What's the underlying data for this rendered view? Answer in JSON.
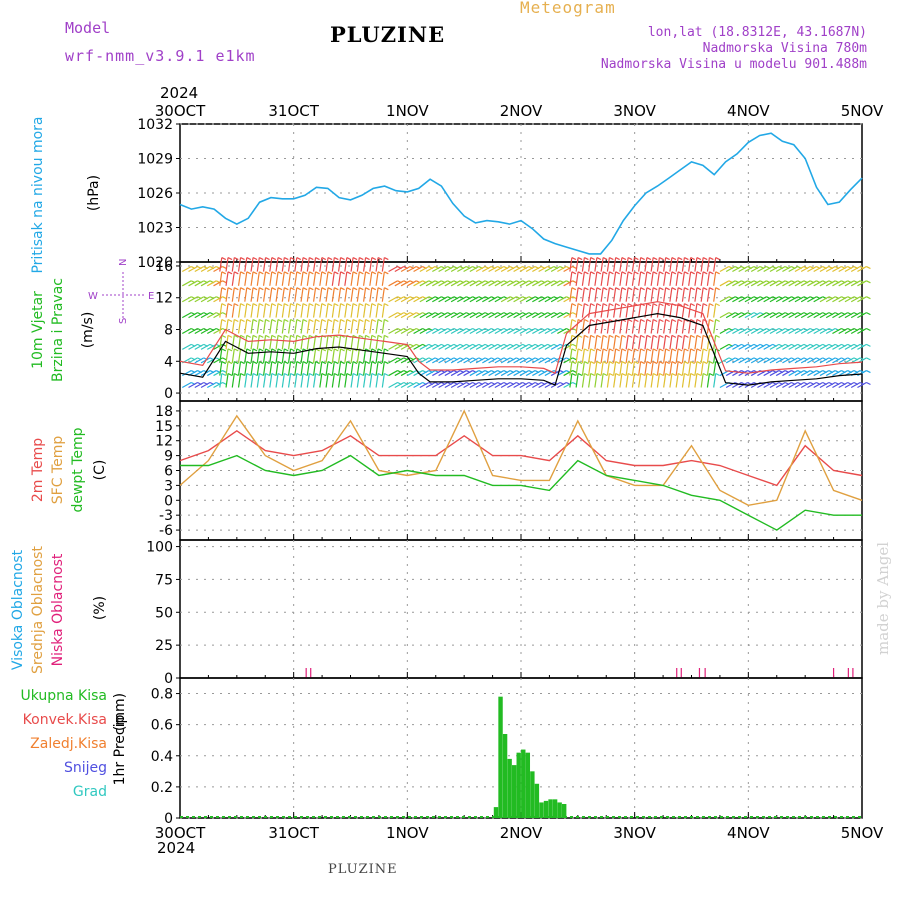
{
  "header": {
    "model_label": "Model",
    "model_name": "wrf-nmm_v3.9.1 e1km",
    "title": "PLUZINE",
    "meteogram_label": "Meteogram",
    "lonlat": "lon,lat (18.8312E, 43.1687N)",
    "altitude": "Nadmorska Visina 780m",
    "model_altitude": "Nadmorska Visina u modelu 901.488m"
  },
  "footer": {
    "station": "PLUZINE",
    "credit": "made by Angel"
  },
  "colors": {
    "pressure": "#22a8e6",
    "temp2m": "#e84b4b",
    "sfc": "#e0a040",
    "dewpt": "#22bb22",
    "precip": "#22bb22",
    "high_cloud": "#22a8e6",
    "mid_cloud": "#e0a040",
    "low_cloud": "#e0207a",
    "purple": "#a040c8",
    "convective": "#e84b4b",
    "frozen": "#f08030",
    "snow": "#5050e0",
    "grad": "#30c8c0"
  },
  "time_axis": {
    "year": "2024",
    "ticks": [
      "30OCT",
      "31OCT",
      "1NOV",
      "2NOV",
      "3NOV",
      "4NOV",
      "5NOV"
    ]
  },
  "chart_data": [
    {
      "type": "line",
      "id": "pressure",
      "ylabel_title": "Pritisak na nivou mora",
      "ylabel_unit": "(hPa)",
      "ylim": [
        1020,
        1032
      ],
      "yticks": [
        "1020",
        "1023",
        "1026",
        "1029",
        "1032"
      ],
      "x": [
        0,
        0.1,
        0.2,
        0.3,
        0.4,
        0.5,
        0.6,
        0.7,
        0.8,
        0.9,
        1.0,
        1.1,
        1.2,
        1.3,
        1.4,
        1.5,
        1.6,
        1.7,
        1.8,
        1.9,
        2.0,
        2.1,
        2.2,
        2.3,
        2.4,
        2.5,
        2.6,
        2.7,
        2.8,
        2.9,
        3.0,
        3.1,
        3.2,
        3.3,
        3.4,
        3.5,
        3.6,
        3.7,
        3.8,
        3.9,
        4.0,
        4.1,
        4.2,
        4.3,
        4.4,
        4.5,
        4.6,
        4.7,
        4.8,
        4.9,
        5.0,
        5.1,
        5.2,
        5.3,
        5.4,
        5.5,
        5.6,
        5.7,
        5.8,
        5.9,
        6.0
      ],
      "y": [
        1025.0,
        1024.6,
        1024.8,
        1024.6,
        1023.8,
        1023.3,
        1023.8,
        1025.2,
        1025.6,
        1025.5,
        1025.5,
        1025.8,
        1026.5,
        1026.4,
        1025.6,
        1025.4,
        1025.8,
        1026.4,
        1026.6,
        1026.2,
        1026.1,
        1026.4,
        1027.2,
        1026.6,
        1025.1,
        1024.0,
        1023.4,
        1023.6,
        1023.5,
        1023.3,
        1023.6,
        1022.9,
        1022.0,
        1021.6,
        1021.3,
        1021.0,
        1020.7,
        1020.7,
        1021.9,
        1023.6,
        1024.9,
        1026.0,
        1026.6,
        1027.3,
        1028.0,
        1028.7,
        1028.4,
        1027.6,
        1028.7,
        1029.4,
        1030.4,
        1031.0,
        1031.2,
        1030.5,
        1030.2,
        1029.0,
        1026.5,
        1025.0,
        1025.2,
        1026.3,
        1027.3
      ]
    },
    {
      "type": "barbs",
      "id": "wind",
      "ylabel_title_1": "10m Vjetar",
      "ylabel_title_2": "Brzina i Pravac",
      "ylabel_unit": "(m/s)",
      "ylim": [
        -1,
        16.5
      ],
      "yticks": [
        "0",
        "4",
        "8",
        "12",
        "16"
      ],
      "compass": {
        "n": "N",
        "s": "S",
        "e": "E",
        "w": "W"
      },
      "x": [
        0,
        0.2,
        0.4,
        0.6,
        0.8,
        1.0,
        1.2,
        1.4,
        1.6,
        1.8,
        2.0,
        2.1,
        2.2,
        2.4,
        2.6,
        2.8,
        3.0,
        3.2,
        3.3,
        3.4,
        3.6,
        3.8,
        4.0,
        4.2,
        4.4,
        4.6,
        4.8,
        5.0,
        5.2,
        5.4,
        5.6,
        5.8,
        6.0
      ],
      "speed": [
        2.5,
        2.0,
        6.5,
        5.0,
        5.2,
        5.0,
        5.6,
        5.8,
        5.4,
        5.0,
        4.6,
        2.5,
        1.4,
        1.4,
        1.6,
        1.8,
        1.8,
        1.6,
        1.0,
        6.0,
        8.5,
        9.0,
        9.5,
        10.0,
        9.5,
        8.5,
        1.3,
        1.0,
        1.4,
        1.6,
        1.8,
        2.2,
        2.4
      ]
    },
    {
      "type": "line",
      "id": "temperature",
      "ylabel_title_1": "2m Temp",
      "ylabel_title_2": "SFC Temp",
      "ylabel_title_3": "dewpt Temp",
      "ylabel_unit": "(C)",
      "ylim": [
        -8,
        20
      ],
      "yticks": [
        "-6",
        "-3",
        "0",
        "3",
        "6",
        "9",
        "12",
        "15",
        "18"
      ],
      "x": [
        0,
        0.25,
        0.5,
        0.75,
        1.0,
        1.25,
        1.5,
        1.75,
        2.0,
        2.25,
        2.5,
        2.75,
        3.0,
        3.25,
        3.5,
        3.75,
        4.0,
        4.25,
        4.5,
        4.75,
        5.0,
        5.25,
        5.5,
        5.75,
        6.0
      ],
      "series": [
        {
          "name": "2m Temp",
          "values": [
            8,
            10,
            14,
            10,
            9,
            10,
            13,
            9,
            9,
            9,
            13,
            9,
            9,
            8,
            13,
            8,
            7,
            7,
            8,
            7,
            5,
            3,
            11,
            6,
            5
          ]
        },
        {
          "name": "SFC Temp",
          "values": [
            3,
            8,
            17,
            9,
            6,
            8,
            16,
            6,
            5,
            6,
            18,
            5,
            4,
            4,
            16,
            5,
            3,
            3,
            11,
            2,
            -1,
            0,
            14,
            2,
            0
          ]
        },
        {
          "name": "dewpt Temp",
          "values": [
            7,
            7,
            9,
            6,
            5,
            6,
            9,
            5,
            6,
            5,
            5,
            3,
            3,
            2,
            8,
            5,
            4,
            3,
            1,
            0,
            -3,
            -6,
            -2,
            -3,
            -3
          ]
        }
      ]
    },
    {
      "type": "bar",
      "id": "clouds",
      "ylabel_title_1": "Visoka Oblacnost",
      "ylabel_title_2": "Srednja Oblacnost",
      "ylabel_title_3": "Niska Oblacnost",
      "ylabel_unit": "(%)",
      "ylim": [
        0,
        105
      ],
      "yticks": [
        "0",
        "25",
        "50",
        "75",
        "100"
      ],
      "series": [
        {
          "name": "Niska Oblacnost",
          "x": [
            1.11,
            1.15,
            4.37,
            4.41,
            4.57,
            4.62,
            5.75,
            5.88,
            5.92
          ],
          "values": [
            2,
            2,
            2,
            2,
            2,
            2,
            2,
            2,
            2
          ]
        }
      ]
    },
    {
      "type": "bar",
      "id": "precip",
      "ylabel_title": "1hr Precip",
      "ylabel_unit": "(mm)",
      "legend": [
        "Ukupna Kisa",
        "Konvek.Kisa",
        "Zaledj.Kisa",
        "Snijeg",
        "Grad"
      ],
      "ylim": [
        0,
        0.9
      ],
      "yticks": [
        "0",
        "0.2",
        "0.4",
        "0.6",
        "0.8"
      ],
      "x": [
        2.78,
        2.82,
        2.86,
        2.9,
        2.94,
        2.98,
        3.02,
        3.06,
        3.1,
        3.14,
        3.18,
        3.22,
        3.26,
        3.3,
        3.34,
        3.38
      ],
      "values": [
        0.07,
        0.78,
        0.54,
        0.38,
        0.34,
        0.42,
        0.44,
        0.42,
        0.3,
        0.22,
        0.1,
        0.11,
        0.12,
        0.12,
        0.1,
        0.09
      ]
    }
  ]
}
